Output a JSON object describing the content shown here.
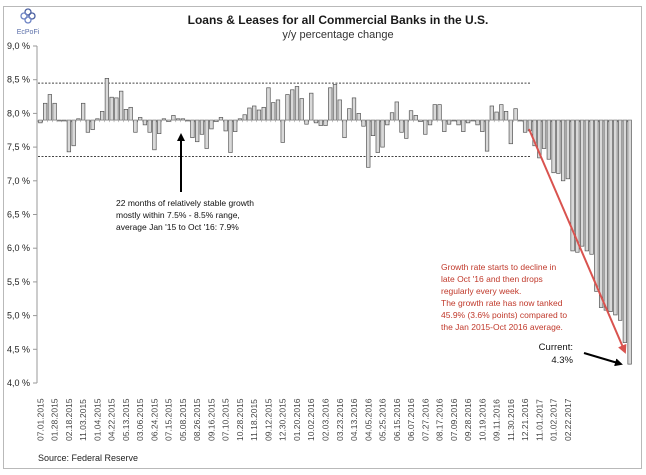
{
  "logo": {
    "text": "EcPoFi",
    "icon": "ecpofi-logo-icon"
  },
  "chart_data": {
    "type": "bar",
    "title": "Loans & Leases for all Commercial Banks in the U.S.",
    "subtitle": "y/y percentage change",
    "xlabel": "",
    "ylabel": "",
    "ylim": [
      4.0,
      9.0
    ],
    "baseline": 7.9,
    "grid": false,
    "yticks": [
      9.0,
      8.5,
      8.0,
      7.5,
      7.0,
      6.5,
      6.0,
      5.5,
      5.0,
      4.5,
      4.0
    ],
    "ytick_labels": [
      "9,0 %",
      "8,5 %",
      "8,0 %",
      "7,5 %",
      "7,0 %",
      "6,5 %",
      "6,0 %",
      "5,5 %",
      "5,0 %",
      "4,5 %",
      "4,0 %"
    ],
    "reference_lines": [
      {
        "name": "upper-range",
        "value": 8.45
      },
      {
        "name": "lower-range",
        "value": 7.36
      }
    ],
    "xtick_labels": [
      "07.01.2015",
      "01.28.2015",
      "02.18.2015",
      "11.03.2015",
      "01.04.2015",
      "04.22.2015",
      "05.13.2015",
      "03.06.2015",
      "06.24.2015",
      "07.15.2015",
      "05.08.2015",
      "08.26.2015",
      "09.16.2015",
      "07.10.2015",
      "10.28.2015",
      "11.18.2015",
      "09.12.2015",
      "12.30.2015",
      "01.20.2016",
      "10.02.2016",
      "02.03.2016",
      "03.23.2016",
      "04.13.2016",
      "04.05.2016",
      "05.25.2016",
      "06.15.2016",
      "06.07.2016",
      "07.27.2016",
      "08.17.2016",
      "07.09.2016",
      "09.28.2016",
      "10.19.2016",
      "09.11.2016",
      "11.30.2016",
      "12.21.2016",
      "11.01.2017",
      "01.02.2017",
      "02.22.2017"
    ],
    "xtick_every": 3,
    "values": [
      7.86,
      8.15,
      8.28,
      8.15,
      7.9,
      7.89,
      7.43,
      7.52,
      7.92,
      8.15,
      7.72,
      7.76,
      7.92,
      8.03,
      8.52,
      8.24,
      8.23,
      8.33,
      8.06,
      8.09,
      7.72,
      7.94,
      7.83,
      7.72,
      7.46,
      7.7,
      7.92,
      7.88,
      7.97,
      7.92,
      7.92,
      7.9,
      7.64,
      7.58,
      7.69,
      7.48,
      7.77,
      7.88,
      7.94,
      7.74,
      7.42,
      7.73,
      7.92,
      7.98,
      8.08,
      8.11,
      8.05,
      8.09,
      8.38,
      8.16,
      8.2,
      7.57,
      8.28,
      8.35,
      8.4,
      8.22,
      7.84,
      8.3,
      7.86,
      7.82,
      7.82,
      8.38,
      8.43,
      8.2,
      7.64,
      8.07,
      8.23,
      8.0,
      7.81,
      7.2,
      7.67,
      7.42,
      7.5,
      7.83,
      8.01,
      8.17,
      7.72,
      7.63,
      8.04,
      7.97,
      7.88,
      7.69,
      7.83,
      8.13,
      8.13,
      7.73,
      7.84,
      7.9,
      7.83,
      7.73,
      7.86,
      7.9,
      7.83,
      7.73,
      7.44,
      8.11,
      8.02,
      8.13,
      8.03,
      7.55,
      8.07,
      7.9,
      7.72,
      7.74,
      7.52,
      7.34,
      7.48,
      7.32,
      7.12,
      7.11,
      7.0,
      7.03,
      5.96,
      5.94,
      6.03,
      5.96,
      5.91,
      5.36,
      5.12,
      5.08,
      5.06,
      5.01,
      4.93,
      4.6,
      4.28
    ],
    "annotations": [
      {
        "name": "stable-growth-note",
        "lines": [
          "22 months of relatively stable growth",
          "mostly within 7.5% - 8.5% range,",
          "average Jan '15 to Oct '16: 7.9%"
        ]
      },
      {
        "name": "decline-note",
        "color": "#c0392b",
        "lines": [
          "Growth rate starts to decline in",
          "late Oct '16 and then drops",
          "regularly every week.",
          "The growth rate has now tanked",
          "45.9% (3.6% points) compared to",
          "the Jan 2015-Oct 2016 average."
        ]
      },
      {
        "name": "current-note",
        "lines": [
          "Current:",
          "4.3%"
        ]
      }
    ],
    "colors": {
      "bar_fill": "#d9d9d9",
      "bar_stroke": "#555555",
      "trend_arrow": "#d9534f",
      "note_red": "#c0392b"
    }
  },
  "source": "Source: Federal Reserve"
}
